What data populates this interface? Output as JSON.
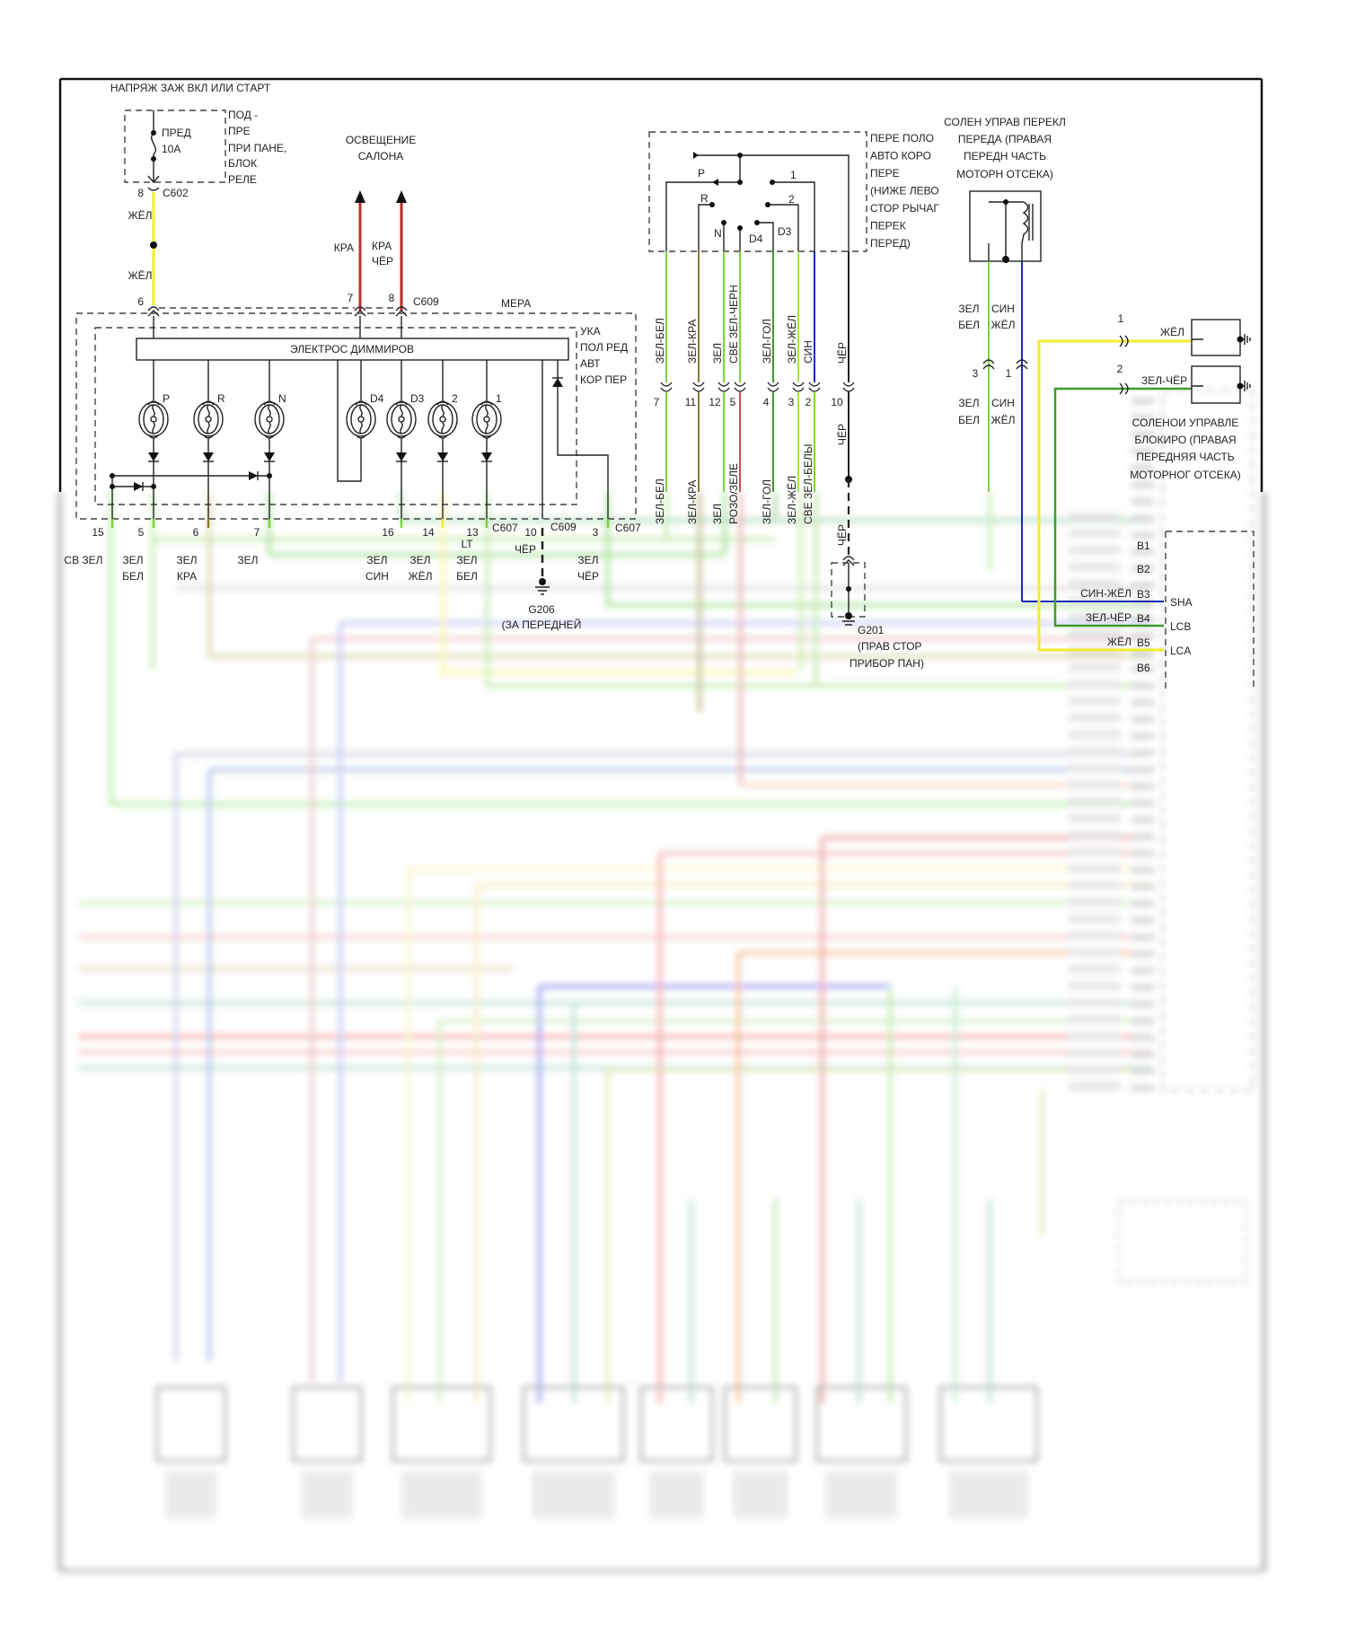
{
  "fuse": {
    "supply": "НАПРЯЖ ЗАЖ ВКЛ ИЛИ СТАРТ",
    "name": "ПРЕД",
    "rating": "10A",
    "location": [
      "ПОД -",
      "ПРЕ",
      "ПРИ ПАНЕ,",
      "БЛОК",
      "РЕЛЕ"
    ],
    "pin": "8",
    "connector": "C602"
  },
  "feed": {
    "wire_top": "ЖЁЛ",
    "wire_bottom": "ЖЁЛ",
    "pin": "6"
  },
  "lighting": {
    "label": [
      "ОСВЕЩЕНИЕ",
      "САЛОНА"
    ],
    "wire_a": "КРА",
    "wire_b": [
      "КРА",
      "ЧЁР"
    ],
    "pin_a": "7",
    "pin_b": "8",
    "connector": "C609"
  },
  "mepa": {
    "label": "МЕРА",
    "module": [
      "УКА",
      "ПОЛ РЕД",
      "АВТ",
      "КОР ПЕР"
    ],
    "dimmer": "ЭЛЕКТРОС ДИММИРОВ",
    "lamps": [
      "P",
      "R",
      "N",
      "D4",
      "D3",
      "2",
      "1"
    ]
  },
  "mepa_pins": [
    {
      "pin": "15",
      "wire": [
        "СВ ЗЕЛ"
      ]
    },
    {
      "pin": "5",
      "wire": [
        "ЗЕЛ",
        "БЕЛ"
      ]
    },
    {
      "pin": "6",
      "wire": [
        "ЗЕЛ",
        "КРА"
      ]
    },
    {
      "pin": "7",
      "wire": [
        "ЗЕЛ"
      ]
    },
    {
      "pin": "16",
      "wire": [
        "ЗЕЛ",
        "СИН"
      ]
    },
    {
      "pin": "14",
      "wire": [
        "ЗЕЛ",
        "ЖЁЛ"
      ]
    },
    {
      "pin": "13",
      "wire": [
        "LT",
        "ЗЕЛ",
        "БЕЛ"
      ]
    },
    {
      "pin": "10",
      "wire": [
        "ЧЁР"
      ]
    },
    {
      "pin": "3",
      "wire": [
        "ЗЕЛ",
        "ЧЁР"
      ]
    }
  ],
  "connectors": {
    "c607_a": "C607",
    "c609": "C609",
    "c607_b": "C607"
  },
  "g206": {
    "name": "G206",
    "location": "(ЗА ПЕРЕДНЕЙ"
  },
  "switch": {
    "label": [
      "ПЕРЕ ПОЛО",
      "АВТО КОРО",
      "ПЕРЕ",
      "(НИЖЕ ЛЕВО",
      "СТОР РЫЧАГ",
      "ПЕРЕК",
      "ПЕРЕД)"
    ],
    "contacts": [
      "P",
      "R",
      "N",
      "D4",
      "D3",
      "1",
      "2"
    ]
  },
  "switch_wires": [
    {
      "pin": "7",
      "upper": "ЗЕЛ-БЕЛ",
      "lower": "ЗЕЛ-БЕЛ"
    },
    {
      "pin": "11",
      "upper": "ЗЕЛ-КРА",
      "lower": "ЗЕЛ-КРА"
    },
    {
      "pin": "12",
      "upper": "ЗЕЛ",
      "lower": "ЗЕЛ"
    },
    {
      "pin": "5",
      "upper": "СВЕ ЗЕЛ-ЧЕРН",
      "lower": "РОЗО/ЗЕЛЕ"
    },
    {
      "pin": "4",
      "upper": "ЗЕЛ-ГОЛ",
      "lower": "ЗЕЛ-ГОЛ"
    },
    {
      "pin": "3",
      "upper": "ЗЕЛ-ЖЁЛ",
      "lower": "ЗЕЛ-ЖЁЛ"
    },
    {
      "pin": "2",
      "upper": "СИН",
      "lower": "СВЕ ЗЕЛ-БЕЛЫ"
    },
    {
      "pin": "10",
      "upper": "ЧЁР",
      "lower": "ЧЁР"
    }
  ],
  "g201": {
    "wire": "ЧЁР",
    "name": "G201",
    "location": [
      "(ПРАВ СТОР",
      "ПРИБОР ПАН)"
    ]
  },
  "shift_solenoid": {
    "label": [
      "СОЛЕН УПРАВ ПЕРЕКЛ",
      "ПЕРЕДА (ПРАВАЯ",
      "ПЕРЕДН ЧАСТЬ",
      "МОТОРН ОТСЕКА)"
    ],
    "wires": [
      {
        "pin": "3",
        "upper": [
          "ЗЕЛ",
          "БЕЛ"
        ],
        "lower": [
          "ЗЕЛ",
          "БЕЛ"
        ]
      },
      {
        "pin": "1",
        "upper": [
          "СИН",
          "ЖЁЛ"
        ],
        "lower": [
          "СИН",
          "ЖЁЛ"
        ]
      }
    ]
  },
  "lockup_solenoid": {
    "label": [
      "СОЛЕНОИ УПРАВЛЕ",
      "БЛОКИРО (ПРАВАЯ",
      "ПЕРЕДНЯЯ ЧАСТЬ",
      "МОТОРНОГ ОТСЕКА)"
    ],
    "wires": [
      {
        "pin": "1",
        "color": "ЖЁЛ"
      },
      {
        "pin": "2",
        "color": "ЗЕЛ-ЧЁР"
      }
    ]
  },
  "pcm": {
    "pins": [
      "B1",
      "B2",
      "B3",
      "B4",
      "B5",
      "B6"
    ],
    "signals": [
      "SHA",
      "LCB",
      "LCA"
    ],
    "wires": [
      "СИН-ЖЁЛ",
      "ЗЕЛ-ЧЁР",
      "ЖЁЛ"
    ]
  },
  "colors": {
    "green": "#7ad33f",
    "dark_green": "#3f9b2a",
    "olive": "#8a7f2c",
    "yellow": "#f0ee2a",
    "red": "#b8302a",
    "pink_red": "#c9524a",
    "blue": "#1f2bb8",
    "black": "#222222"
  }
}
